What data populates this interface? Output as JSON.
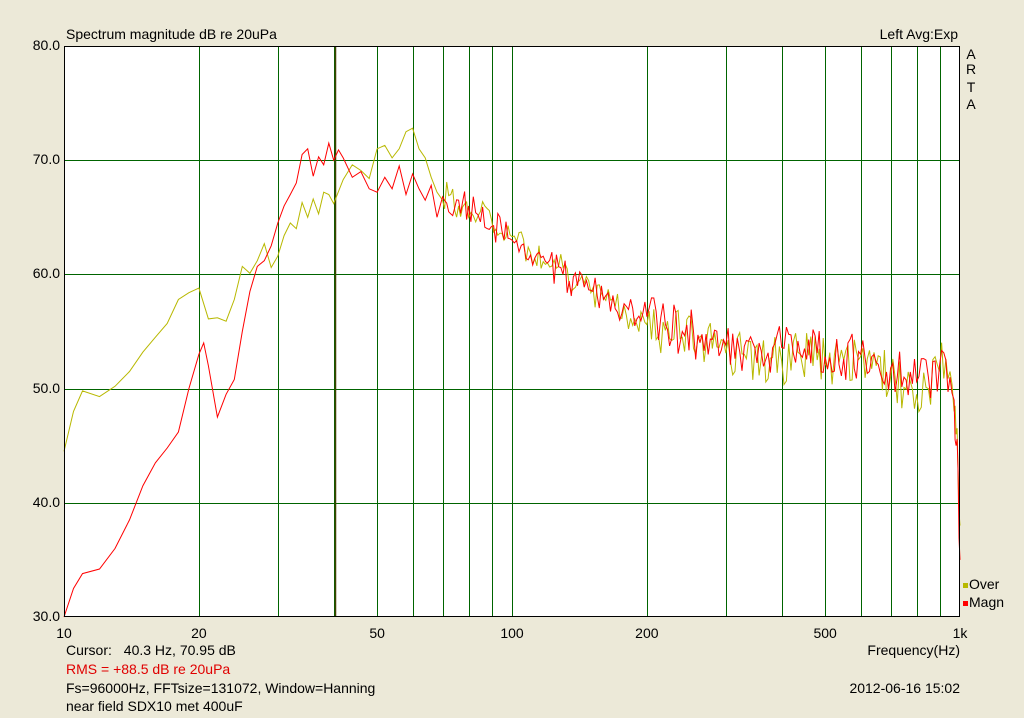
{
  "title": "Spectrum magnitude dB re 20uPa",
  "channel_info": "Left  Avg:Exp",
  "brand_letters": [
    "A",
    "R",
    "T",
    "A"
  ],
  "xlabel": "Frequency(Hz)",
  "cursor_label": "Cursor:",
  "cursor_value": "40.3 Hz, 70.95 dB",
  "rms": "RMS =  +88.5 dB re 20uPa",
  "settings": "Fs=96000Hz, FFTsize=131072, Window=Hanning",
  "note": "near field SDX10 met 400uF",
  "timestamp": "2012-06-16  15:02",
  "colors": {
    "background": "#ECE9D8",
    "plot_bg": "#FFFFFF",
    "grid": "#006400",
    "cursor": "#404000",
    "over": "#B8B800",
    "magn": "#FF0000",
    "rms_text": "#E00000"
  },
  "chart_data": {
    "type": "line",
    "xscale": "log",
    "xlim": [
      10,
      1000
    ],
    "ylim": [
      30,
      80
    ],
    "yticks": [
      {
        "value": 30,
        "label": "30.0"
      },
      {
        "value": 40,
        "label": "40.0"
      },
      {
        "value": 50,
        "label": "50.0"
      },
      {
        "value": 60,
        "label": "60.0"
      },
      {
        "value": 70,
        "label": "70.0"
      },
      {
        "value": 80,
        "label": "80.0"
      }
    ],
    "xticks": [
      {
        "value": 10,
        "label": "10"
      },
      {
        "value": 20,
        "label": "20"
      },
      {
        "value": 50,
        "label": "50"
      },
      {
        "value": 100,
        "label": "100"
      },
      {
        "value": 200,
        "label": "200"
      },
      {
        "value": 500,
        "label": "500"
      },
      {
        "value": 1000,
        "label": "1k"
      }
    ],
    "xgrid": [
      20,
      30,
      40,
      50,
      60,
      70,
      80,
      90,
      100,
      200,
      300,
      400,
      500,
      600,
      700,
      800,
      900
    ],
    "cursor_x": 40.3,
    "series": [
      {
        "name": "Over",
        "color": "#B8B800",
        "x": [
          10,
          10.5,
          11,
          12,
          13,
          14,
          15,
          16,
          17,
          18,
          19,
          20,
          21,
          22,
          23,
          24,
          25,
          26,
          27,
          28,
          29,
          30,
          31,
          32,
          33,
          34,
          35,
          36,
          37,
          38,
          39,
          40,
          42,
          44,
          46,
          48,
          50,
          52,
          54,
          56,
          58,
          60,
          62,
          64,
          66,
          68,
          70,
          73,
          76,
          80,
          85,
          90,
          95,
          100,
          110,
          120,
          130,
          140,
          150,
          160,
          170,
          180,
          190,
          200,
          220,
          240,
          260,
          280,
          300,
          330,
          360,
          400,
          440,
          480,
          500,
          550,
          600,
          650,
          700,
          750,
          800,
          850,
          900,
          930,
          950,
          970,
          980,
          990,
          1000
        ],
        "y": [
          44.5,
          48.0,
          49.8,
          49.3,
          50.2,
          51.5,
          53.2,
          54.5,
          55.7,
          57.8,
          58.4,
          58.8,
          56.1,
          56.2,
          55.9,
          57.8,
          60.7,
          60.1,
          61.2,
          62.7,
          60.6,
          61.6,
          63.4,
          64.5,
          64.0,
          66.3,
          65.0,
          66.6,
          65.3,
          67.2,
          67.0,
          66.2,
          68.3,
          69.6,
          69.1,
          68.4,
          71.0,
          71.3,
          70.2,
          71.0,
          72.5,
          72.8,
          71.0,
          70.2,
          68.5,
          67.2,
          66.5,
          67.0,
          66.0,
          65.0,
          65.5,
          64.8,
          63.6,
          63.3,
          61.9,
          61.0,
          60.6,
          59.3,
          58.4,
          58.0,
          57.2,
          56.4,
          55.6,
          55.6,
          55.1,
          54.5,
          54.4,
          53.5,
          53.1,
          53.0,
          52.6,
          52.4,
          53.0,
          52.5,
          52.2,
          52.5,
          52.8,
          52.0,
          51.0,
          50.1,
          49.5,
          50.0,
          51.5,
          52.6,
          51.5,
          48.0,
          46.0,
          43.0,
          38.0
        ]
      },
      {
        "name": "Magn",
        "color": "#FF0000",
        "x": [
          10,
          10.5,
          11,
          12,
          13,
          14,
          15,
          16,
          17,
          18,
          19,
          20,
          20.5,
          21,
          22,
          23,
          24,
          25,
          26,
          27,
          28,
          29,
          30,
          31,
          32,
          33,
          34,
          35,
          36,
          37,
          38,
          39,
          40,
          41,
          42,
          44,
          46,
          48,
          50,
          52,
          54,
          56,
          58,
          60,
          62,
          64,
          66,
          68,
          70,
          73,
          76,
          80,
          85,
          90,
          95,
          100,
          110,
          120,
          130,
          140,
          150,
          160,
          170,
          180,
          190,
          200,
          220,
          240,
          260,
          280,
          300,
          330,
          360,
          400,
          440,
          480,
          500,
          550,
          600,
          650,
          700,
          750,
          800,
          850,
          900,
          930,
          950,
          970,
          980,
          990,
          1000
        ],
        "y": [
          30.0,
          32.5,
          33.8,
          34.2,
          36.0,
          38.5,
          41.5,
          43.5,
          44.8,
          46.2,
          50.0,
          53.0,
          54.0,
          52.0,
          47.5,
          49.5,
          50.8,
          55.0,
          58.5,
          60.7,
          61.2,
          62.5,
          64.5,
          66.0,
          67.0,
          68.0,
          70.5,
          71.0,
          68.6,
          70.3,
          69.6,
          71.5,
          70.0,
          70.9,
          70.2,
          68.5,
          69.0,
          67.5,
          67.2,
          68.5,
          67.5,
          69.5,
          67.0,
          68.8,
          67.5,
          66.5,
          67.8,
          65.0,
          66.8,
          65.3,
          66.5,
          66.0,
          64.6,
          64.2,
          63.8,
          63.0,
          61.7,
          61.0,
          60.0,
          59.0,
          58.6,
          57.8,
          57.0,
          57.2,
          56.1,
          56.3,
          55.6,
          55.0,
          54.7,
          54.3,
          53.8,
          53.7,
          53.3,
          53.6,
          53.0,
          53.1,
          52.8,
          52.6,
          53.0,
          52.3,
          51.8,
          51.0,
          50.6,
          51.0,
          52.0,
          52.5,
          51.0,
          49.0,
          45.0,
          43.0,
          35.0
        ]
      }
    ]
  }
}
